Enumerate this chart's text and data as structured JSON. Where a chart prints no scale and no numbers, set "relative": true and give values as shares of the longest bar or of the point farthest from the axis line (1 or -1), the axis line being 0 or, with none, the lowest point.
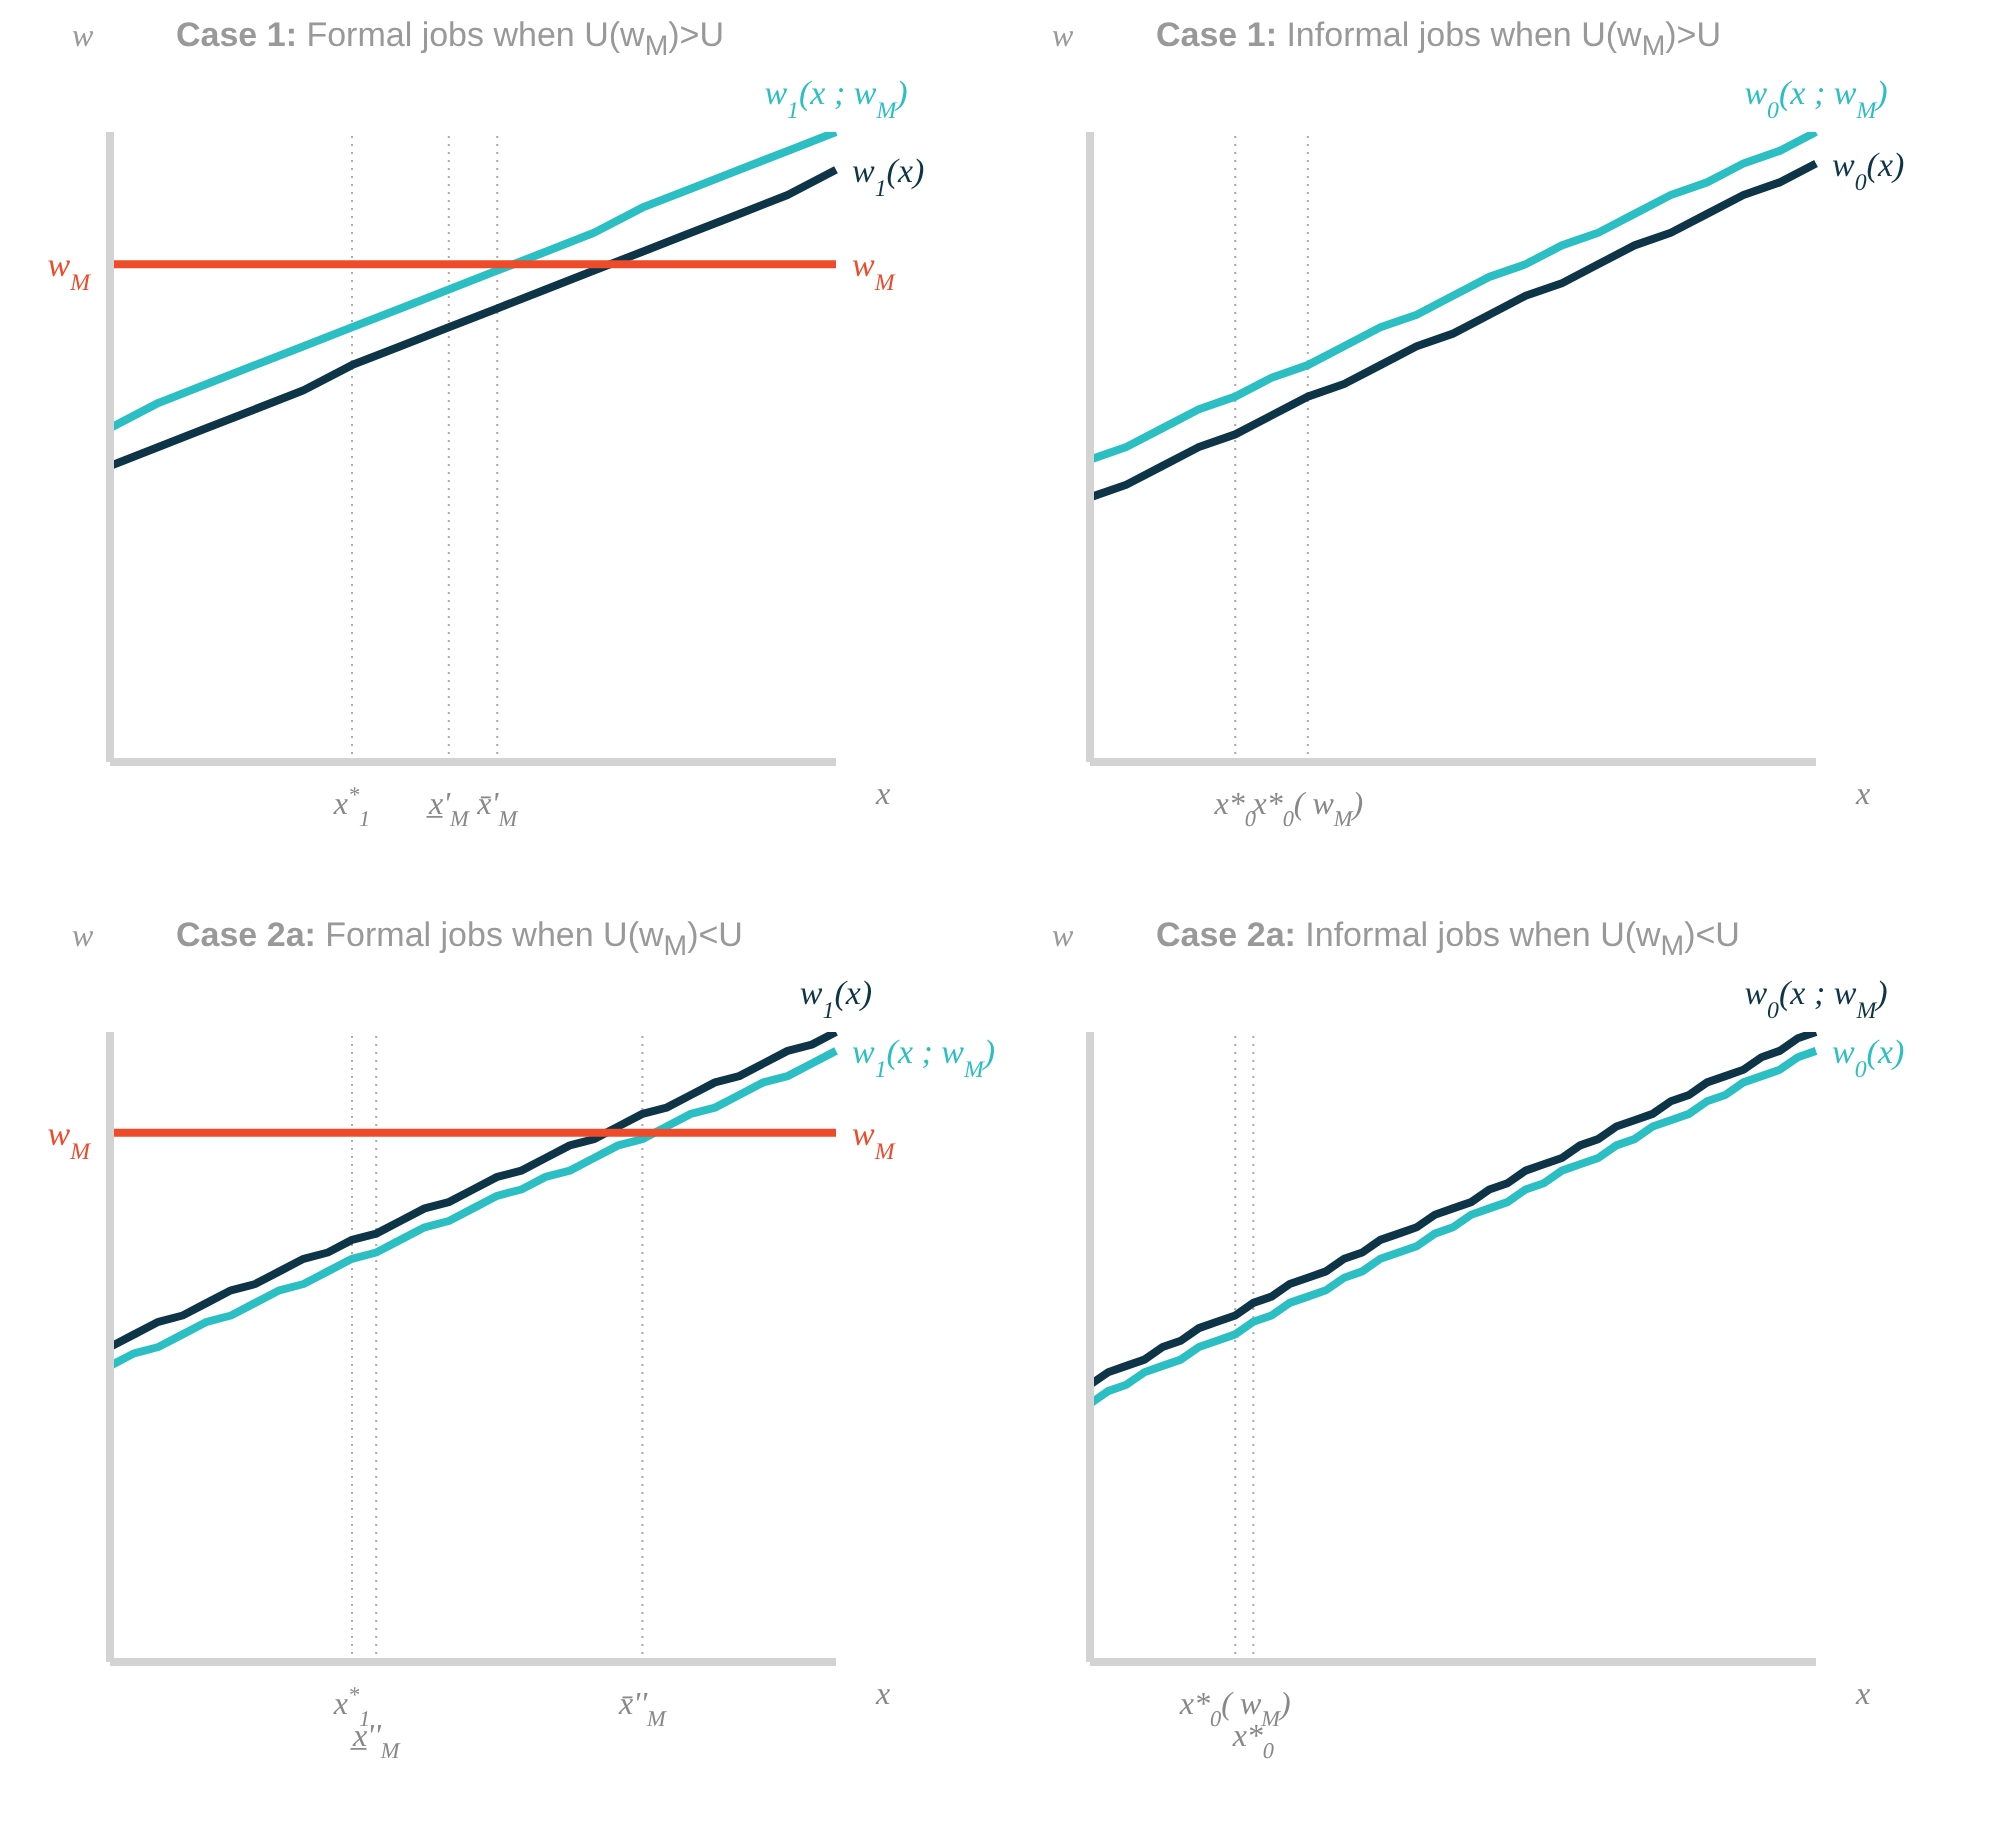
{
  "chart_data": [
    {
      "type": "line",
      "relative": true,
      "grid": "x",
      "title": "Case 1: Formal jobs when U(w$_{M}$)>U",
      "xlabel": "x",
      "ylabel": "w",
      "categories": [
        null,
        null,
        null,
        null,
        null,
        "x$^{*}$$_{1}$",
        null,
        "x̲'$_{M}$",
        "x̄'$_{M}$",
        null,
        null,
        null,
        null,
        null,
        null,
        null
      ],
      "series": [
        {
          "name": "w$_{1}$(x ; w$_{M}$)",
          "color": "#2bbfc4",
          "values": [
            0.53,
            0.57,
            0.6,
            0.63,
            0.66,
            0.69,
            0.72,
            0.75,
            0.78,
            0.81,
            0.84,
            0.88,
            0.91,
            0.94,
            0.97,
            1
          ]
        },
        {
          "name": "w$_{1}$(x)",
          "color": "#0d3547",
          "values": [
            0.47,
            0.5,
            0.53,
            0.56,
            0.59,
            0.63,
            0.66,
            0.69,
            0.72,
            0.75,
            0.78,
            0.81,
            0.84,
            0.87,
            0.9,
            0.94
          ]
        },
        {
          "name": "w$_{M}$",
          "color": "#ee4b2b",
          "values": [
            0.79,
            0.79,
            0.79,
            0.79,
            0.79,
            0.79,
            0.79,
            0.79,
            0.79,
            0.79,
            0.79,
            0.79,
            0.79,
            0.79,
            0.79,
            0.79
          ]
        }
      ],
      "annotations": [
        "w$_{M}$"
      ]
    },
    {
      "type": "line",
      "relative": true,
      "grid": "x",
      "title": "Case 1: Informal jobs when U(w$_{M}$)>U",
      "xlabel": "x",
      "ylabel": "w",
      "categories": [
        null,
        null,
        null,
        null,
        "x*$_{0}$",
        null,
        "x*$_{0}$( w$_{M}$)",
        null,
        null,
        null,
        null,
        null,
        null,
        null,
        null,
        null,
        null,
        null,
        null,
        null,
        null
      ],
      "series": [
        {
          "name": "w$_{0}$(x ; w$_{M}$)",
          "color": "#2bbfc4",
          "values": [
            0.48,
            0.5,
            0.53,
            0.56,
            0.58,
            0.61,
            0.63,
            0.66,
            0.69,
            0.71,
            0.74,
            0.77,
            0.79,
            0.82,
            0.84,
            0.87,
            0.9,
            0.92,
            0.95,
            0.97,
            1
          ]
        },
        {
          "name": "w$_{0}$(x)",
          "color": "#0d3547",
          "values": [
            0.42,
            0.44,
            0.47,
            0.5,
            0.52,
            0.55,
            0.58,
            0.6,
            0.63,
            0.66,
            0.68,
            0.71,
            0.74,
            0.76,
            0.79,
            0.82,
            0.84,
            0.87,
            0.9,
            0.92,
            0.95
          ]
        }
      ]
    },
    {
      "type": "line",
      "relative": true,
      "grid": "x",
      "title": "Case 2a: Formal jobs when U(w$_{M}$)<U",
      "xlabel": "x",
      "ylabel": "w",
      "categories": [
        null,
        null,
        null,
        null,
        null,
        null,
        null,
        null,
        null,
        null,
        "x$^{*}$$_{1}$",
        "x̲''$_{M}$",
        null,
        null,
        null,
        null,
        null,
        null,
        null,
        null,
        null,
        null,
        "x̄''$_{M}$",
        null,
        null,
        null,
        null,
        null,
        null,
        null,
        null
      ],
      "series": [
        {
          "name": "w$_{1}$(x)",
          "color": "#0d3547",
          "values": [
            0.5,
            0.52,
            0.54,
            0.55,
            0.57,
            0.59,
            0.6,
            0.62,
            0.64,
            0.65,
            0.67,
            0.68,
            0.7,
            0.72,
            0.73,
            0.75,
            0.77,
            0.78,
            0.8,
            0.82,
            0.83,
            0.85,
            0.87,
            0.88,
            0.9,
            0.92,
            0.93,
            0.95,
            0.97,
            0.98,
            1
          ]
        },
        {
          "name": "w$_{1}$(x ; w$_{M}$)",
          "color": "#2bbfc4",
          "values": [
            0.47,
            0.49,
            0.5,
            0.52,
            0.54,
            0.55,
            0.57,
            0.59,
            0.6,
            0.62,
            0.64,
            0.65,
            0.67,
            0.69,
            0.7,
            0.72,
            0.74,
            0.75,
            0.77,
            0.78,
            0.8,
            0.82,
            0.83,
            0.85,
            0.87,
            0.88,
            0.9,
            0.92,
            0.93,
            0.95,
            0.97
          ]
        },
        {
          "name": "w$_{M}$",
          "color": "#ee4b2b",
          "values": [
            0.84,
            0.84,
            0.84,
            0.84,
            0.84,
            0.84,
            0.84,
            0.84,
            0.84,
            0.84,
            0.84,
            0.84,
            0.84,
            0.84,
            0.84,
            0.84,
            0.84,
            0.84,
            0.84,
            0.84,
            0.84,
            0.84,
            0.84,
            0.84,
            0.84,
            0.84,
            0.84,
            0.84,
            0.84,
            0.84,
            0.84
          ]
        }
      ],
      "annotations": [
        "w$_{M}$"
      ]
    },
    {
      "type": "line",
      "relative": true,
      "grid": "x",
      "title": "Case 2a: Informal jobs when U(w$_{M}$)<U",
      "xlabel": "x",
      "ylabel": "w",
      "categories": [
        null,
        null,
        null,
        null,
        null,
        null,
        null,
        null,
        "x*$_{0}$( w$_{M}$)",
        "x*$_{0}$",
        null,
        null,
        null,
        null,
        null,
        null,
        null,
        null,
        null,
        null,
        null,
        null,
        null,
        null,
        null,
        null,
        null,
        null,
        null,
        null,
        null,
        null,
        null,
        null,
        null,
        null,
        null,
        null,
        null,
        null,
        null
      ],
      "series": [
        {
          "name": "w$_{0}$(x ; w$_{M}$)",
          "color": "#0d3547",
          "values": [
            0.44,
            0.46,
            0.47,
            0.48,
            0.5,
            0.51,
            0.53,
            0.54,
            0.55,
            0.57,
            0.58,
            0.6,
            0.61,
            0.62,
            0.64,
            0.65,
            0.67,
            0.68,
            0.69,
            0.71,
            0.72,
            0.73,
            0.75,
            0.76,
            0.78,
            0.79,
            0.8,
            0.82,
            0.83,
            0.85,
            0.86,
            0.87,
            0.89,
            0.9,
            0.92,
            0.93,
            0.94,
            0.96,
            0.97,
            0.99,
            1
          ]
        },
        {
          "name": "w$_{0}$(x)",
          "color": "#2bbfc4",
          "values": [
            0.41,
            0.43,
            0.44,
            0.46,
            0.47,
            0.48,
            0.5,
            0.51,
            0.52,
            0.54,
            0.55,
            0.57,
            0.58,
            0.59,
            0.61,
            0.62,
            0.64,
            0.65,
            0.66,
            0.68,
            0.69,
            0.71,
            0.72,
            0.73,
            0.75,
            0.76,
            0.78,
            0.79,
            0.8,
            0.82,
            0.83,
            0.85,
            0.86,
            0.87,
            0.89,
            0.9,
            0.92,
            0.93,
            0.94,
            0.96,
            0.97
          ]
        }
      ]
    }
  ]
}
